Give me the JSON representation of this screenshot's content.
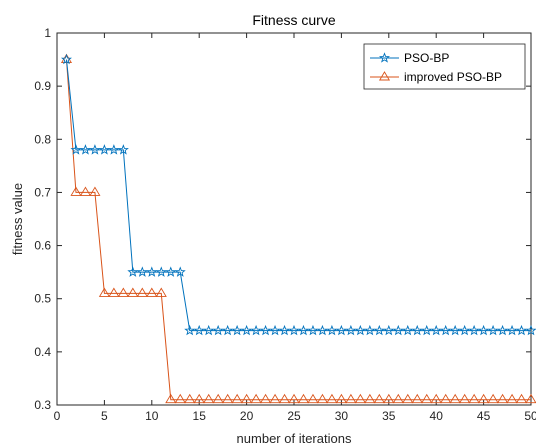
{
  "chart_data": {
    "type": "line",
    "title": "Fitness curve",
    "xlabel": "number of iterations",
    "ylabel": "fitness value",
    "xlim": [
      0,
      50
    ],
    "ylim": [
      0.3,
      1
    ],
    "xticks": [
      "0",
      "5",
      "10",
      "15",
      "20",
      "25",
      "30",
      "35",
      "40",
      "45",
      "50"
    ],
    "yticks": [
      "0.3",
      "0.4",
      "0.5",
      "0.6",
      "0.7",
      "0.8",
      "0.9",
      "1"
    ],
    "grid": false,
    "legend_position": "top-right",
    "x": [
      1,
      2,
      3,
      4,
      5,
      6,
      7,
      8,
      9,
      10,
      11,
      12,
      13,
      14,
      15,
      16,
      17,
      18,
      19,
      20,
      21,
      22,
      23,
      24,
      25,
      26,
      27,
      28,
      29,
      30,
      31,
      32,
      33,
      34,
      35,
      36,
      37,
      38,
      39,
      40,
      41,
      42,
      43,
      44,
      45,
      46,
      47,
      48,
      49,
      50
    ],
    "series": [
      {
        "name": "PSO-BP",
        "marker": "star",
        "color": "#0072BD",
        "values": [
          0.95,
          0.78,
          0.78,
          0.78,
          0.78,
          0.78,
          0.78,
          0.55,
          0.55,
          0.55,
          0.55,
          0.55,
          0.55,
          0.44,
          0.44,
          0.44,
          0.44,
          0.44,
          0.44,
          0.44,
          0.44,
          0.44,
          0.44,
          0.44,
          0.44,
          0.44,
          0.44,
          0.44,
          0.44,
          0.44,
          0.44,
          0.44,
          0.44,
          0.44,
          0.44,
          0.44,
          0.44,
          0.44,
          0.44,
          0.44,
          0.44,
          0.44,
          0.44,
          0.44,
          0.44,
          0.44,
          0.44,
          0.44,
          0.44,
          0.44
        ]
      },
      {
        "name": "improved PSO-BP",
        "marker": "triangle",
        "color": "#D95319",
        "values": [
          0.95,
          0.7,
          0.7,
          0.7,
          0.51,
          0.51,
          0.51,
          0.51,
          0.51,
          0.51,
          0.51,
          0.31,
          0.31,
          0.31,
          0.31,
          0.31,
          0.31,
          0.31,
          0.31,
          0.31,
          0.31,
          0.31,
          0.31,
          0.31,
          0.31,
          0.31,
          0.31,
          0.31,
          0.31,
          0.31,
          0.31,
          0.31,
          0.31,
          0.31,
          0.31,
          0.31,
          0.31,
          0.31,
          0.31,
          0.31,
          0.31,
          0.31,
          0.31,
          0.31,
          0.31,
          0.31,
          0.31,
          0.31,
          0.31,
          0.31
        ]
      }
    ]
  }
}
